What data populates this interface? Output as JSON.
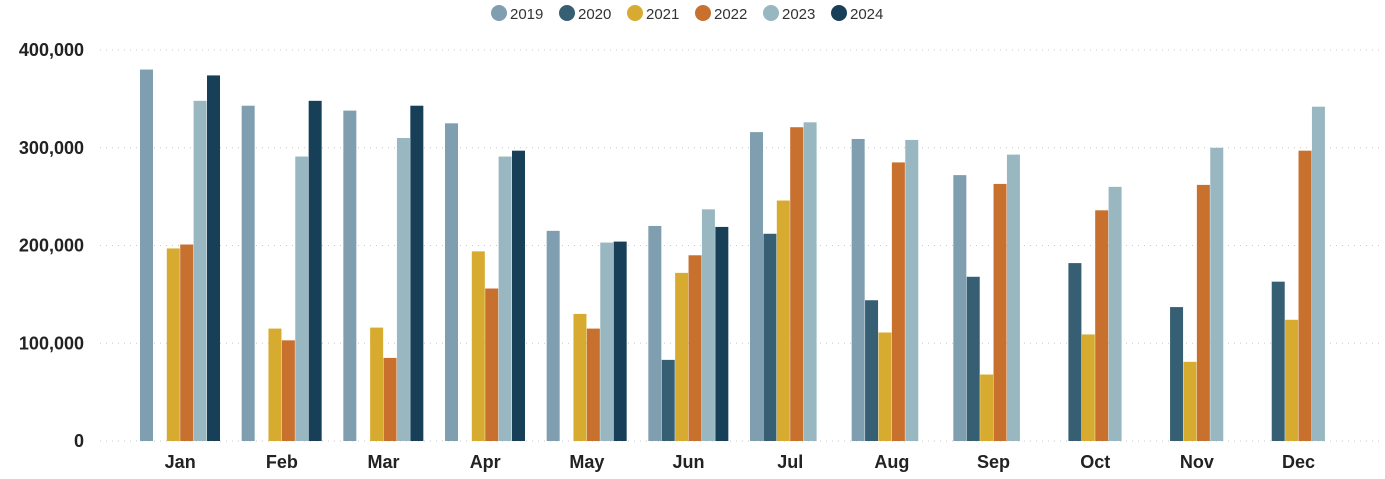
{
  "chart_data": {
    "type": "bar",
    "categories": [
      "Jan",
      "Feb",
      "Mar",
      "Apr",
      "May",
      "Jun",
      "Jul",
      "Aug",
      "Sep",
      "Oct",
      "Nov",
      "Dec"
    ],
    "series": [
      {
        "name": "2019",
        "color": "#7f9fb0",
        "values": [
          380000,
          343000,
          338000,
          325000,
          215000,
          220000,
          316000,
          309000,
          272000,
          null,
          null,
          null
        ]
      },
      {
        "name": "2020",
        "color": "#365f73",
        "values": [
          null,
          null,
          null,
          null,
          null,
          83000,
          212000,
          144000,
          168000,
          182000,
          137000,
          163000
        ]
      },
      {
        "name": "2021",
        "color": "#d6ab2f",
        "values": [
          197000,
          115000,
          116000,
          194000,
          130000,
          172000,
          246000,
          111000,
          68000,
          109000,
          81000,
          124000
        ]
      },
      {
        "name": "2022",
        "color": "#c8702e",
        "values": [
          201000,
          103000,
          85000,
          156000,
          115000,
          190000,
          321000,
          285000,
          263000,
          236000,
          262000,
          297000
        ]
      },
      {
        "name": "2023",
        "color": "#98b7c0",
        "values": [
          348000,
          291000,
          310000,
          291000,
          203000,
          237000,
          326000,
          308000,
          293000,
          260000,
          300000,
          342000
        ]
      },
      {
        "name": "2024",
        "color": "#173f57",
        "values": [
          374000,
          348000,
          343000,
          297000,
          204000,
          219000,
          null,
          null,
          null,
          null,
          null,
          null
        ]
      }
    ],
    "y_ticks": [
      "0",
      "100,000",
      "200,000",
      "300,000",
      "400,000"
    ],
    "ylim": [
      0,
      400000
    ],
    "grid": true,
    "legend_position": "top-center"
  }
}
